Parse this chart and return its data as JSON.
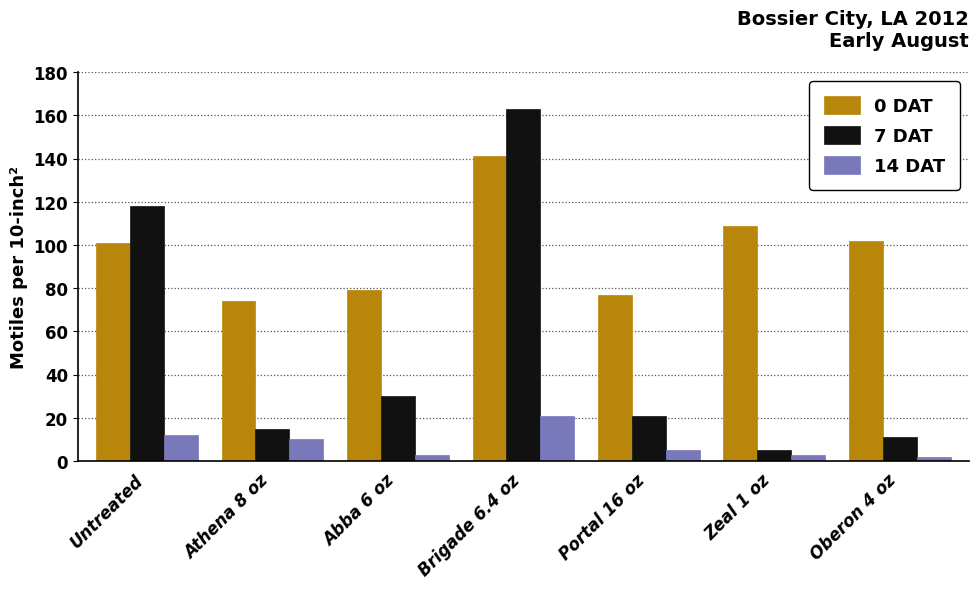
{
  "title_line1": "Bossier City, LA 2012",
  "title_line2": "Early August",
  "ylabel": "Motiles per 10-inch²",
  "categories": [
    "Untreated",
    "Athena 8 oz",
    "Abba 6 oz",
    "Brigade 6.4 oz",
    "Portal 16 oz",
    "Zeal 1 oz",
    "Oberon 4 oz"
  ],
  "series": {
    "0 DAT": [
      101,
      74,
      79,
      141,
      77,
      109,
      102
    ],
    "7 DAT": [
      118,
      15,
      30,
      163,
      21,
      5,
      11
    ],
    "14 DAT": [
      12,
      10,
      3,
      21,
      5,
      3,
      2
    ]
  },
  "colors": {
    "0 DAT": "#B8860B",
    "7 DAT": "#111111",
    "14 DAT": "#7878BB"
  },
  "ylim": [
    0,
    180
  ],
  "yticks": [
    0,
    20,
    40,
    60,
    80,
    100,
    120,
    140,
    160,
    180
  ],
  "bar_width": 0.27,
  "legend_labels": [
    "0 DAT",
    "7 DAT",
    "14 DAT"
  ],
  "background_color": "#ffffff",
  "grid_color": "#555555",
  "title_fontsize": 14,
  "axis_label_fontsize": 13,
  "tick_fontsize": 12,
  "legend_fontsize": 13
}
